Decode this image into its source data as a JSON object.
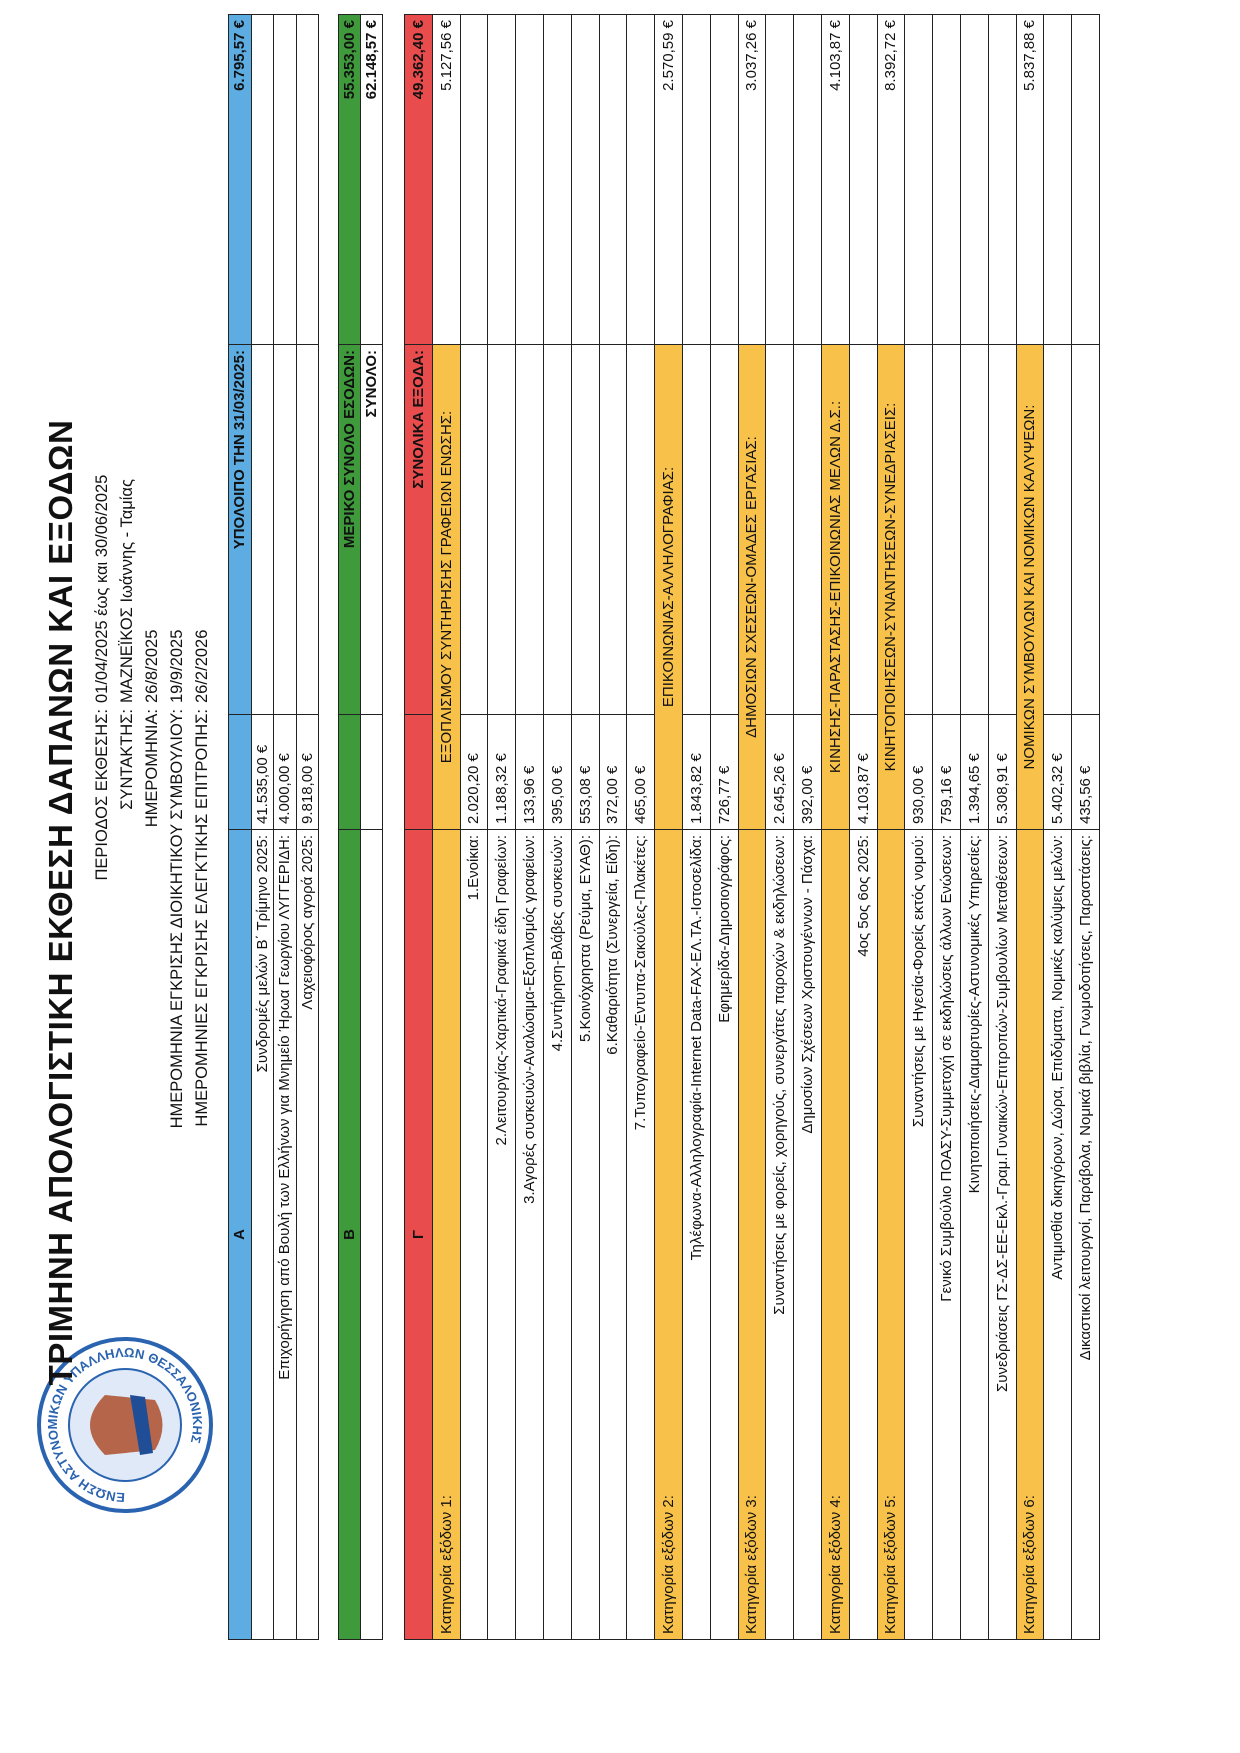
{
  "header": {
    "logo_text": "ΕΝΩΣΗ ΑΣΤΥΝΟΜΙΚΩΝ ΥΠΑΛΛΗΛΩΝ ΘΕΣΣΑΛΟΝΙΚΗΣ",
    "title": "ΤΡΙΜΗΝΗ ΑΠΟΛΟΓΙΣΤΙΚΗ ΕΚΘΕΣΗ ΔΑΠΑΝΩΝ ΚΑΙ ΕΞΟΔΩΝ",
    "lines": [
      {
        "label": "ΠΕΡΙΟΔΟΣ ΕΚΘΕΣΗΣ:",
        "value": "01/04/2025 έως και 30/06/2025"
      },
      {
        "label": "ΣΥΝΤΑΚΤΗΣ:",
        "value": "ΜΑΖΝΕΪΚΟΣ Ιωάννης - Ταμίας"
      },
      {
        "label": "ΗΜΕΡΟΜΗΝΙΑ:",
        "value": "26/8/2025"
      },
      {
        "label": "ΗΜΕΡΟΜΗΝΙΑ ΕΓΚΡΙΣΗΣ ΔΙΟΙΚΗΤΙΚΟΥ ΣΥΜΒΟΥΛΙΟΥ:",
        "value": "19/9/2025"
      },
      {
        "label": "ΗΜΕΡΟΜΗΝΙΕΣ ΕΓΚΡΙΣΗΣ ΕΛΕΓΚΤΙΚΗΣ ΕΠΙΤΡΟΠΗΣ:",
        "value": "26/2/2026"
      }
    ]
  },
  "table": {
    "blocks": [
      [
        {
          "style": "blue",
          "desc": "Α",
          "label": "ΥΠΟΛΟΙΠΟ ΤΗΝ 31/03/2025:",
          "total": "6.795,57 €"
        },
        {
          "desc": "Συνδρομές μελών Β΄ Τρίμηνο 2025:",
          "amount": "41.535,00 €"
        },
        {
          "desc": "Επιχορήγηση από Βουλή των Ελλήνων για Μνημείο Ήρωα Γεωργίου ΛΥΓΓΕΡΙΔΗ:",
          "amount": "4.000,00 €"
        },
        {
          "desc": "Λαχειοφόρος αγορά 2025:",
          "amount": "9.818,00 €"
        }
      ],
      [
        {
          "style": "green",
          "desc": "Β",
          "label": "ΜΕΡΙΚΟ ΣΥΝΟΛΟ ΕΣΟΔΩΝ:",
          "total": "55.353,00 €"
        },
        {
          "label": "ΣΥΝΟΛΟ:",
          "total": "62.148,57 €"
        }
      ],
      [
        {
          "style": "red",
          "desc": "Γ",
          "label": "ΣΥΝΟΛΙΚΑ ΕΞΟΔΑ:",
          "total": "49.362,40 €"
        },
        {
          "style": "category",
          "desc": "Κατηγορία εξόδων 1:",
          "label": "ΕΞΟΠΛΙΣΜΟΥ ΣΥΝΤΗΡΗΣΗΣ ΓΡΑΦΕΙΩΝ ΕΝΩΣΗΣ:",
          "total": "5.127,56 €"
        },
        {
          "desc": "1.Ενοίκια:",
          "amount": "2.020,20 €"
        },
        {
          "desc": "2.Λειτουργίας-Χαρτικά-Γραφικά είδη Γραφείων:",
          "amount": "1.188,32 €"
        },
        {
          "desc": "3.Αγορές συσκευών-Αναλώσιμα-Εξοπλισμός γραφείων:",
          "amount": "133,96 €"
        },
        {
          "desc": "4.Συντήρηση-Βλάβες συσκευών:",
          "amount": "395,00 €"
        },
        {
          "desc": "5.Κοινόχρηστα (Ρεύμα, ΕΥΑΘ):",
          "amount": "553,08 €"
        },
        {
          "desc": "6.Καθαριότητα (Συνεργεία, Είδη):",
          "amount": "372,00 €"
        },
        {
          "desc": "7.Τυπογραφείο-Έντυπα-Σακούλες-Πλακέτες:",
          "amount": "465,00 €"
        },
        {
          "style": "category",
          "desc": "Κατηγορία εξόδων 2:",
          "label": "ΕΠΙΚΟΙΝΩΝΙΑΣ-ΑΛΛΗΛΟΓΡΑΦΙΑΣ:",
          "total": "2.570,59 €"
        },
        {
          "desc": "Τηλέφωνα-Αλληλογραφία-Internet Data-FAX-ΕΛ.ΤΑ.-Ιστοσελίδα:",
          "amount": "1.843,82 €"
        },
        {
          "desc": "Εφημερίδα-Δημοσιογράφος:",
          "amount": "726,77 €"
        },
        {
          "style": "category",
          "desc": "Κατηγορία εξόδων 3:",
          "label": "ΔΗΜΟΣΙΩΝ ΣΧΕΣΕΩΝ-ΟΜΑΔΕΣ ΕΡΓΑΣΙΑΣ:",
          "total": "3.037,26 €"
        },
        {
          "desc": "Συναντήσεις με φορείς, χορηγούς, συνεργάτες παροχών & εκδηλώσεων:",
          "amount": "2.645,26 €"
        },
        {
          "desc": "Δημοσίων Σχέσεων Χριστουγέννων - Πάσχα:",
          "amount": "392,00 €"
        },
        {
          "style": "category",
          "desc": "Κατηγορία εξόδων 4:",
          "label": "ΚΙΝΗΣΗΣ-ΠΑΡΑΣΤΑΣΗΣ-ΕΠΙΚΟΙΝΩΝΙΑΣ ΜΕΛΩΝ Δ.Σ.:",
          "total": "4.103,87 €"
        },
        {
          "desc": "4ος 5ος 6ος 2025:",
          "amount": "4.103,87 €"
        },
        {
          "style": "category",
          "desc": "Κατηγορία εξόδων 5:",
          "label": "ΚΙΝΗΤΟΠΟΙΗΣΕΩΝ-ΣΥΝΑΝΤΗΣΕΩΝ-ΣΥΝΕΔΡΙΑΣΕΙΣ:",
          "total": "8.392,72 €"
        },
        {
          "desc": "Συναντήσεις με Ηγεσία-Φορείς εκτός νομού:",
          "amount": "930,00 €"
        },
        {
          "desc": "Γενικό Συμβούλιο ΠΟΑΣΥ-Συμμετοχή σε εκδηλώσεις άλλων Ενώσεων:",
          "amount": "759,16 €"
        },
        {
          "desc": "Κινητοποιήσεις-Διαμαρτυρίες-Αστυνομικές Υπηρεσίες:",
          "amount": "1.394,65 €"
        },
        {
          "desc": "Συνεδριάσεις ΓΣ-ΔΣ-ΕΕ-Εκλ.-Γραμ.Γυναικών-Επιτροπών-Συμβουλίων Μεταθέσεων:",
          "amount": "5.308,91 €"
        },
        {
          "style": "category",
          "desc": "Κατηγορία εξόδων 6:",
          "label": "ΝΟΜΙΚΩΝ ΣΥΜΒΟΥΛΩΝ ΚΑΙ ΝΟΜΙΚΩΝ ΚΑΛΥΨΕΩΝ:",
          "total": "5.837,88 €"
        },
        {
          "desc": "Αντιμισθία δικηγόρων, Δώρα, Επιδόματα, Νομικές καλύψεις μελών:",
          "amount": "5.402,32 €"
        },
        {
          "desc": "Δικαστικοί λειτουργοί, Παράβολα, Νομικά βιβλία, Γνωμοδοτήσεις, Παραστάσεις:",
          "amount": "435,56 €"
        }
      ]
    ]
  }
}
